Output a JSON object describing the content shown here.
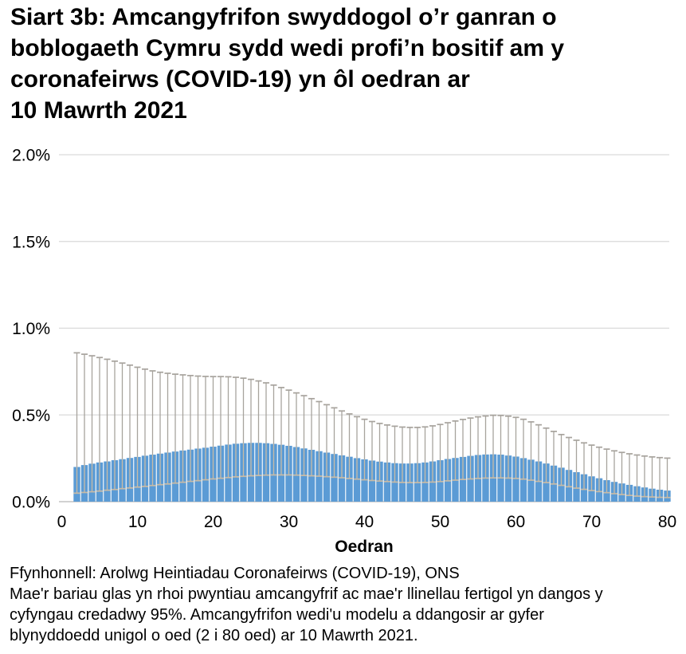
{
  "title": {
    "lines": [
      "Siart 3b: Amcangyfrifon swyddogol o’r ganran o",
      "boblogaeth Cymru sydd wedi profi’n bositif am y",
      "coronafeirws (COVID-19) yn ôl oedran ar",
      "10 Mawrth 2021"
    ]
  },
  "footer": {
    "source": "Ffynhonnell: Arolwg Heintiadau Coronafeirws (COVID-19), ONS",
    "note_lines": [
      "Mae'r bariau glas yn rhoi pwyntiau amcangyfrif ac mae'r llinellau fertigol yn dangos y",
      "cyfyngau credadwy 95%. Amcangyfrifon wedi'u modelu a ddangosir ar gyfer",
      "blynyddoedd unigol o oed (2 i 80 oed) ar 10 Mawrth 2021."
    ]
  },
  "chart_data": {
    "type": "bar",
    "title": "Siart 3b: Amcangyfrifon swyddogol o’r ganran o boblogaeth Cymru sydd wedi profi’n bositif am y coronafeirws (COVID-19) yn ôl oedran ar 10 Mawrth 2021",
    "xlabel": "Oedran",
    "ylabel": "",
    "unit": "percent",
    "xlim": [
      0,
      80
    ],
    "ylim": [
      0,
      2.0
    ],
    "grid": "horizontal",
    "legend": "none",
    "x_axis": {
      "label": "Oedran",
      "ticks": [
        0,
        10,
        20,
        30,
        40,
        50,
        60,
        70,
        80
      ]
    },
    "y_axis": {
      "ticks": [
        {
          "value": 0.0,
          "label": "0.0%"
        },
        {
          "value": 0.5,
          "label": "0.5%"
        },
        {
          "value": 1.0,
          "label": "1.0%"
        },
        {
          "value": 1.5,
          "label": "1.5%"
        },
        {
          "value": 2.0,
          "label": "2.0%"
        }
      ]
    },
    "ages": [
      2,
      3,
      4,
      5,
      6,
      7,
      8,
      9,
      10,
      11,
      12,
      13,
      14,
      15,
      16,
      17,
      18,
      19,
      20,
      21,
      22,
      23,
      24,
      25,
      26,
      27,
      28,
      29,
      30,
      31,
      32,
      33,
      34,
      35,
      36,
      37,
      38,
      39,
      40,
      41,
      42,
      43,
      44,
      45,
      46,
      47,
      48,
      49,
      50,
      51,
      52,
      53,
      54,
      55,
      56,
      57,
      58,
      59,
      60,
      61,
      62,
      63,
      64,
      65,
      66,
      67,
      68,
      69,
      70,
      71,
      72,
      73,
      74,
      75,
      76,
      77,
      78,
      79,
      80
    ],
    "estimate": [
      0.2,
      0.211,
      0.219,
      0.226,
      0.232,
      0.239,
      0.245,
      0.252,
      0.258,
      0.265,
      0.271,
      0.277,
      0.283,
      0.289,
      0.295,
      0.3,
      0.306,
      0.311,
      0.317,
      0.323,
      0.329,
      0.334,
      0.337,
      0.339,
      0.339,
      0.337,
      0.333,
      0.328,
      0.322,
      0.315,
      0.307,
      0.299,
      0.291,
      0.283,
      0.275,
      0.267,
      0.259,
      0.251,
      0.244,
      0.237,
      0.231,
      0.226,
      0.222,
      0.22,
      0.22,
      0.222,
      0.226,
      0.232,
      0.239,
      0.246,
      0.252,
      0.258,
      0.264,
      0.269,
      0.272,
      0.273,
      0.271,
      0.266,
      0.26,
      0.251,
      0.242,
      0.232,
      0.22,
      0.208,
      0.196,
      0.183,
      0.17,
      0.158,
      0.146,
      0.135,
      0.124,
      0.114,
      0.105,
      0.097,
      0.089,
      0.082,
      0.075,
      0.069,
      0.064
    ],
    "upper_95": [
      0.858,
      0.85,
      0.841,
      0.831,
      0.821,
      0.81,
      0.799,
      0.787,
      0.775,
      0.764,
      0.754,
      0.746,
      0.74,
      0.735,
      0.731,
      0.727,
      0.724,
      0.722,
      0.721,
      0.721,
      0.72,
      0.717,
      0.712,
      0.705,
      0.696,
      0.685,
      0.672,
      0.658,
      0.643,
      0.627,
      0.611,
      0.594,
      0.577,
      0.559,
      0.541,
      0.523,
      0.506,
      0.49,
      0.475,
      0.462,
      0.451,
      0.442,
      0.435,
      0.43,
      0.428,
      0.428,
      0.431,
      0.437,
      0.445,
      0.455,
      0.465,
      0.474,
      0.482,
      0.489,
      0.494,
      0.498,
      0.497,
      0.493,
      0.486,
      0.475,
      0.46,
      0.443,
      0.424,
      0.405,
      0.387,
      0.37,
      0.354,
      0.339,
      0.326,
      0.314,
      0.303,
      0.293,
      0.284,
      0.276,
      0.269,
      0.263,
      0.258,
      0.254,
      0.251
    ],
    "lower_95": [
      0.049,
      0.053,
      0.057,
      0.061,
      0.066,
      0.07,
      0.075,
      0.079,
      0.084,
      0.088,
      0.093,
      0.098,
      0.102,
      0.107,
      0.112,
      0.117,
      0.121,
      0.126,
      0.131,
      0.135,
      0.139,
      0.143,
      0.146,
      0.149,
      0.151,
      0.153,
      0.154,
      0.154,
      0.154,
      0.153,
      0.151,
      0.149,
      0.147,
      0.144,
      0.141,
      0.138,
      0.134,
      0.13,
      0.126,
      0.122,
      0.119,
      0.116,
      0.113,
      0.111,
      0.11,
      0.11,
      0.111,
      0.113,
      0.116,
      0.12,
      0.124,
      0.128,
      0.131,
      0.134,
      0.136,
      0.137,
      0.137,
      0.136,
      0.134,
      0.13,
      0.124,
      0.117,
      0.11,
      0.102,
      0.094,
      0.086,
      0.078,
      0.071,
      0.064,
      0.058,
      0.052,
      0.046,
      0.041,
      0.036,
      0.032,
      0.029,
      0.027,
      0.025,
      0.024
    ],
    "colors": {
      "bar": "#5B9BD5",
      "whisker": "#a7a39d",
      "whisker_over_bar": "#c8bba6",
      "gridline": "#d9d9d9",
      "axis_line": "#c3c3c3",
      "text": "#000000"
    }
  }
}
